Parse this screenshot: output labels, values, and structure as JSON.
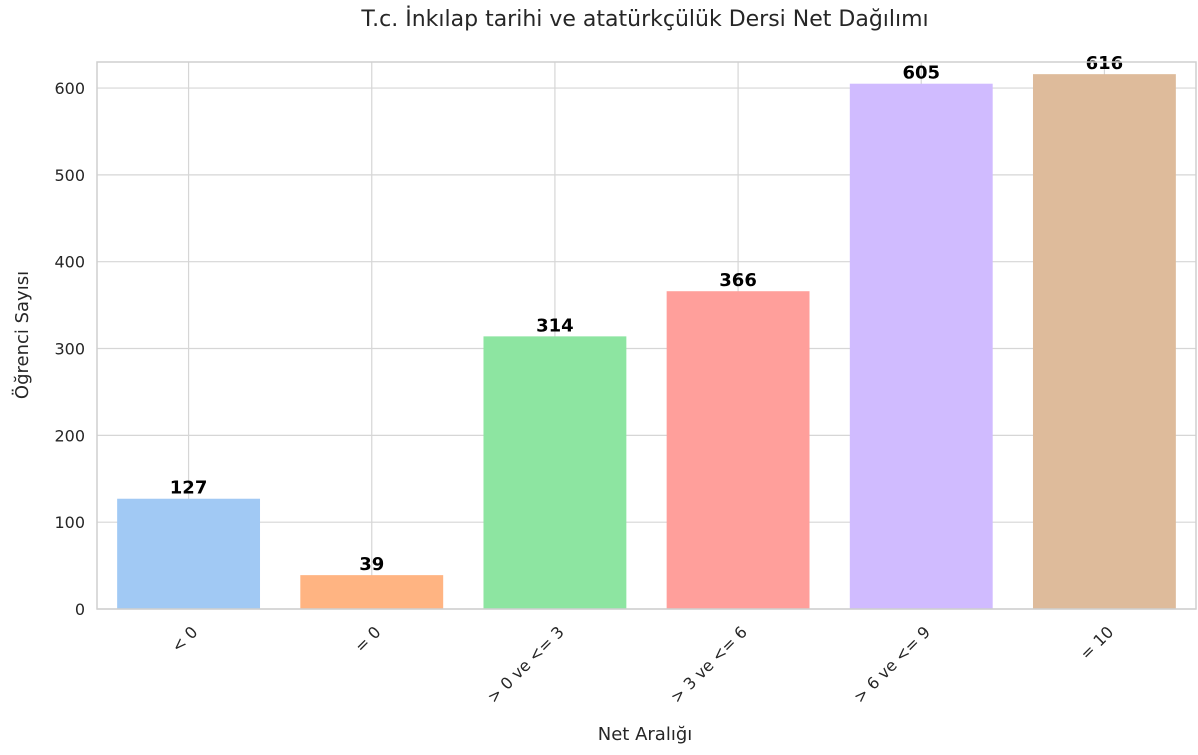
{
  "chart_data": {
    "type": "bar",
    "title": "T.c. İnkılap tarihi ve atatürkçülük Dersi Net Dağılımı",
    "xlabel": "Net Aralığı",
    "ylabel": "Öğrenci Sayısı",
    "categories": [
      "< 0",
      "= 0",
      "> 0 ve <= 3",
      "> 3 ve <= 6",
      "> 6 ve <= 9",
      "= 10"
    ],
    "values": [
      127,
      39,
      314,
      366,
      605,
      616
    ],
    "colors": [
      "#a1c9f4",
      "#ffb482",
      "#8de5a1",
      "#ff9f9b",
      "#d0bbff",
      "#debb9b"
    ],
    "ylim": [
      0,
      630
    ],
    "yticks": [
      0,
      100,
      200,
      300,
      400,
      500,
      600
    ],
    "grid": true,
    "legend": "none",
    "value_labels": true
  }
}
